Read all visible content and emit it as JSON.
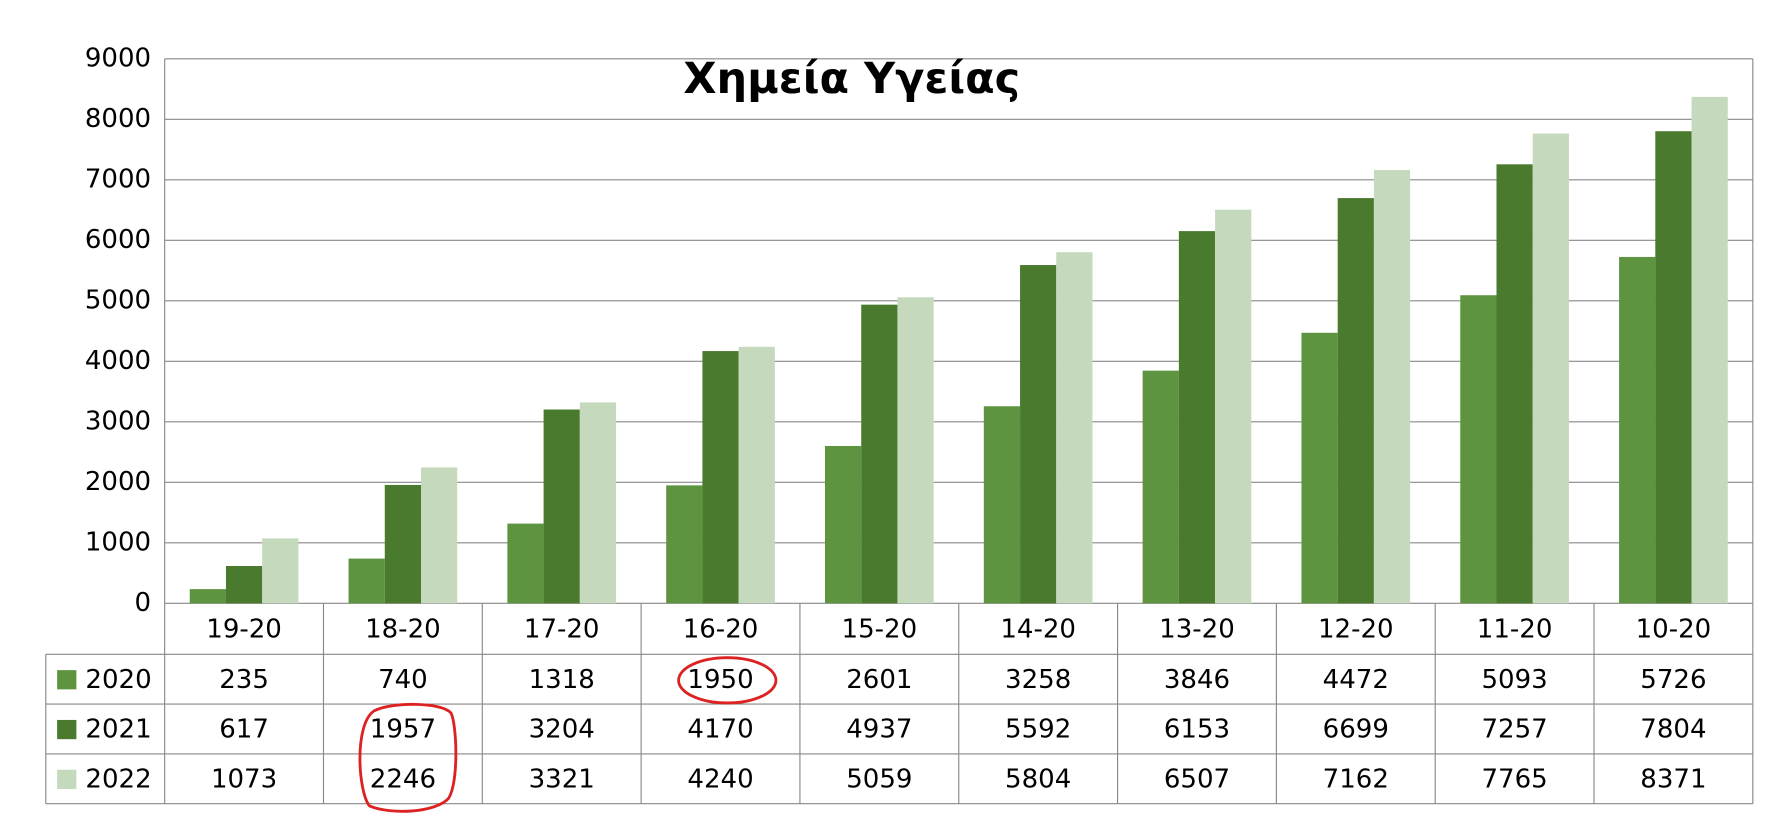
{
  "chart_data": {
    "type": "bar",
    "title": "Χημεία Υγείας",
    "categories": [
      "19-20",
      "18-20",
      "17-20",
      "16-20",
      "15-20",
      "14-20",
      "13-20",
      "12-20",
      "11-20",
      "10-20"
    ],
    "series": [
      {
        "name": "2020",
        "color": "#5e9440",
        "values": [
          235,
          740,
          1318,
          1950,
          2601,
          3258,
          3846,
          4472,
          5093,
          5726
        ]
      },
      {
        "name": "2021",
        "color": "#4a7a2e",
        "values": [
          617,
          1957,
          3204,
          4170,
          4937,
          5592,
          6153,
          6699,
          7257,
          7804
        ]
      },
      {
        "name": "2022",
        "color": "#c5d9bc",
        "values": [
          1073,
          2246,
          3321,
          4240,
          5059,
          5804,
          6507,
          7162,
          7765,
          8371
        ]
      }
    ],
    "ylim": [
      0,
      9000
    ],
    "yticks": [
      0,
      1000,
      2000,
      3000,
      4000,
      5000,
      6000,
      7000,
      8000,
      9000
    ],
    "grid": true
  }
}
